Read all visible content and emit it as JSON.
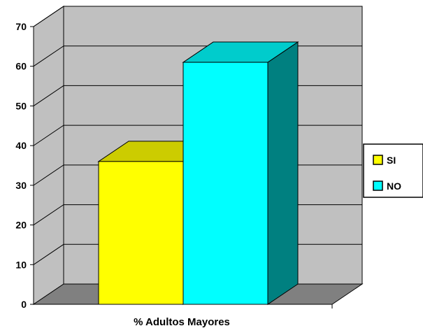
{
  "chart_data": {
    "type": "bar",
    "style": "3d-clustered-column",
    "categories": [
      "% Adultos Mayores"
    ],
    "series": [
      {
        "name": "SI",
        "values": [
          36
        ],
        "color": "#ffff00",
        "side_color": "#999900",
        "top_color": "#cccc00"
      },
      {
        "name": "NO",
        "values": [
          61
        ],
        "color": "#00ffff",
        "side_color": "#008080",
        "top_color": "#00cccc"
      }
    ],
    "xlabel": "% Adultos Mayores",
    "ylabel": "",
    "ylim": [
      0,
      70
    ],
    "yticks": [
      0,
      10,
      20,
      30,
      40,
      50,
      60,
      70
    ],
    "grid": true,
    "legend": "right",
    "colors": {
      "wall": "#c0c0c0",
      "floor": "#808080",
      "grid": "#000000"
    }
  }
}
